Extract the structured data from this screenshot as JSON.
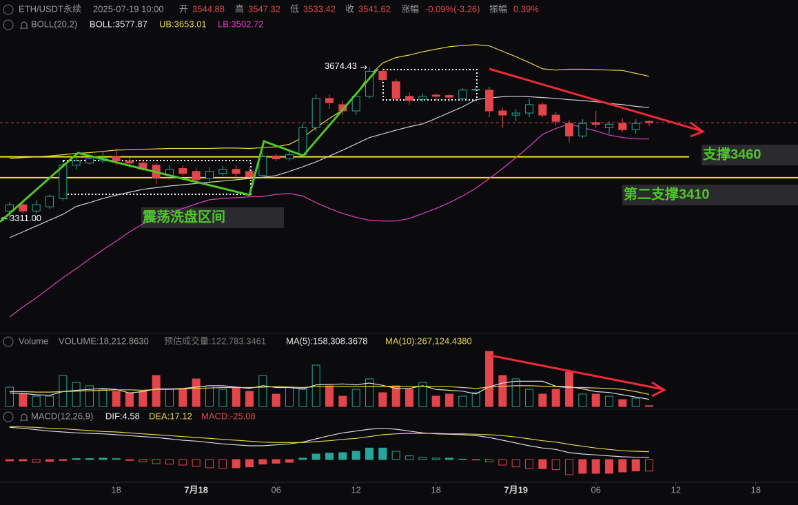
{
  "header": {
    "symbol": "ETH/USDT永续",
    "time": "2025-07-19 10:00",
    "items": [
      [
        "开",
        "3544.88"
      ],
      [
        "高",
        "3547.32"
      ],
      [
        "低",
        "3533.42"
      ],
      [
        "收",
        "3541.62"
      ],
      [
        "涨幅",
        "-0.09%(-3.26)"
      ],
      [
        "振幅",
        "0.39%"
      ]
    ],
    "boll": [
      "BOLL(20,2)",
      "BOLL:3577.87",
      "UB:3653.01",
      "LB:3502.72"
    ],
    "volume": [
      "Volume",
      "VOLUME:18,212.8630",
      "预估成交量:122,783.3461",
      "MA(5):158,308.3678",
      "MA(10):267,124.4380"
    ],
    "macd": [
      "MACD(12,26,9)",
      "DIF:4.58",
      "DEA:17.12",
      "MACD:-25.08"
    ]
  },
  "annotations": {
    "range": "震荡洗盘区间",
    "support1": "支撑3460",
    "support2": "第二支撑3410"
  },
  "chart_data": [
    {
      "type": "candlestick",
      "up_color": "#26a69a",
      "down_color": "#e2454b",
      "ylim": [
        3043,
        3836
      ],
      "xlim": [
        -0.724,
        59.17
      ],
      "xticks": [
        {
          "value": 8,
          "label": "18"
        },
        {
          "value": 14,
          "label": "7月18"
        },
        {
          "value": 20,
          "label": "06"
        },
        {
          "value": 26,
          "label": "12"
        },
        {
          "value": 32,
          "label": "18"
        },
        {
          "value": 38,
          "label": "7月19"
        },
        {
          "value": 44,
          "label": "06"
        },
        {
          "value": 50,
          "label": "12"
        },
        {
          "value": 56,
          "label": "18"
        }
      ],
      "open": [
        3330,
        3345,
        3330,
        3340,
        3360,
        3440,
        3445,
        3450,
        3460,
        3450,
        3445,
        3440,
        3415,
        3432,
        3425,
        3408,
        3420,
        3430,
        3425,
        3415,
        3462,
        3455,
        3465,
        3530,
        3600,
        3585,
        3570,
        3605,
        3665,
        3640,
        3605,
        3598,
        3608,
        3607,
        3600,
        3620,
        3620,
        3570,
        3560,
        3565,
        3585,
        3560,
        3540,
        3510,
        3542,
        3530,
        3540,
        3525,
        3544.88
      ],
      "high": [
        3352,
        3350,
        3355,
        3370,
        3450,
        3460,
        3465,
        3475,
        3480,
        3458,
        3450,
        3445,
        3440,
        3440,
        3432,
        3435,
        3438,
        3440,
        3435,
        3470,
        3468,
        3475,
        3540,
        3610,
        3610,
        3595,
        3612,
        3674.43,
        3672,
        3648,
        3615,
        3612,
        3612,
        3610,
        3625,
        3630,
        3628,
        3578,
        3575,
        3600,
        3590,
        3568,
        3548,
        3550,
        3570,
        3545,
        3552,
        3550,
        3547.32
      ],
      "low": [
        3311,
        3325,
        3325,
        3335,
        3355,
        3430,
        3440,
        3445,
        3440,
        3435,
        3425,
        3395,
        3405,
        3415,
        3395,
        3400,
        3415,
        3412,
        3408,
        3410,
        3450,
        3450,
        3460,
        3520,
        3575,
        3560,
        3560,
        3600,
        3640,
        3595,
        3585,
        3592,
        3595,
        3592,
        3595,
        3615,
        3555,
        3530,
        3545,
        3555,
        3555,
        3535,
        3495,
        3505,
        3530,
        3515,
        3520,
        3515,
        3533.42
      ],
      "close": [
        3345,
        3330,
        3345,
        3365,
        3440,
        3450,
        3455,
        3458,
        3450,
        3445,
        3430,
        3410,
        3430,
        3420,
        3405,
        3425,
        3430,
        3420,
        3412,
        3460,
        3455,
        3465,
        3530,
        3600,
        3590,
        3570,
        3605,
        3665,
        3645,
        3600,
        3595,
        3605,
        3605,
        3603,
        3620,
        3622,
        3570,
        3560,
        3565,
        3585,
        3560,
        3545,
        3510,
        3540,
        3538,
        3538,
        3525,
        3540,
        3541.62
      ],
      "series": [
        {
          "color": "#e8d44d",
          "values": [
            3456,
            3458,
            3460,
            3462,
            3465,
            3468,
            3470,
            3473,
            3476,
            3477,
            3478,
            3479,
            3480,
            3480,
            3480,
            3480,
            3481,
            3481,
            3480,
            3482,
            3484,
            3490,
            3506,
            3530,
            3552,
            3572,
            3610,
            3655,
            3685,
            3698,
            3704,
            3712,
            3718,
            3724,
            3727,
            3729,
            3726,
            3713,
            3700,
            3686,
            3671,
            3668,
            3670,
            3670,
            3669,
            3668,
            3667,
            3660,
            3653.01
          ]
        },
        {
          "color": "#cfcfcf",
          "values": [
            3266,
            3280,
            3294,
            3308,
            3322,
            3341,
            3350,
            3360,
            3368,
            3375,
            3382,
            3386,
            3390,
            3393,
            3396,
            3399,
            3402,
            3405,
            3408,
            3411,
            3415,
            3425,
            3436,
            3448,
            3462,
            3476,
            3491,
            3506,
            3515,
            3524,
            3532,
            3539,
            3552,
            3566,
            3580,
            3597,
            3601,
            3604,
            3605,
            3604,
            3602,
            3600,
            3597,
            3595,
            3592,
            3588,
            3585,
            3581,
            3577.87
          ]
        },
        {
          "color": "#e040c8",
          "values": [
            3076,
            3100,
            3122,
            3146,
            3170,
            3192,
            3215,
            3237,
            3258,
            3280,
            3299,
            3312,
            3325,
            3336,
            3347,
            3357,
            3360,
            3362,
            3364,
            3365,
            3370,
            3372,
            3366,
            3350,
            3336,
            3324,
            3315,
            3308,
            3306,
            3306,
            3312,
            3324,
            3336,
            3350,
            3366,
            3385,
            3408,
            3432,
            3458,
            3485,
            3514,
            3528,
            3539,
            3530,
            3522,
            3512,
            3506,
            3503,
            3502.72
          ]
        }
      ],
      "support_lines": [
        3460,
        3410
      ],
      "support_color": "#f2e41e",
      "extreme_labels": {
        "values": [
          3674.43,
          3311
        ],
        "value_labels": [
          "3674.43",
          "3311.00"
        ]
      }
    },
    {
      "type": "bar",
      "ylim": [
        0,
        1300000
      ],
      "values": [
        428000,
        275000,
        229000,
        229000,
        688000,
        535000,
        459000,
        382000,
        336000,
        306000,
        336000,
        688000,
        382000,
        382000,
        612000,
        459000,
        382000,
        428000,
        336000,
        688000,
        275000,
        428000,
        382000,
        918000,
        459000,
        229000,
        382000,
        612000,
        306000,
        459000,
        382000,
        535000,
        229000,
        275000,
        229000,
        306000,
        1224000,
        688000,
        612000,
        382000,
        275000,
        382000,
        765000,
        275000,
        275000,
        229000,
        153000,
        184000,
        18212.863
      ],
      "series": [
        {
          "color": "#dcdcdc",
          "values": [
            300000,
            290000,
            260000,
            250000,
            330000,
            360000,
            380000,
            400000,
            380000,
            300000,
            330000,
            390000,
            390000,
            400000,
            430000,
            460000,
            460000,
            430000,
            400000,
            460000,
            420000,
            420000,
            390000,
            480000,
            490000,
            500000,
            480000,
            520000,
            470000,
            400000,
            400000,
            460000,
            380000,
            360000,
            340000,
            280000,
            440000,
            520000,
            560000,
            560000,
            560000,
            450000,
            440000,
            390000,
            330000,
            310000,
            260000,
            210000,
            158308.3678
          ]
        },
        {
          "color": "#e8d44d",
          "values": [
            330000,
            330000,
            320000,
            320000,
            330000,
            340000,
            350000,
            360000,
            370000,
            370000,
            360000,
            380000,
            380000,
            390000,
            400000,
            410000,
            420000,
            420000,
            420000,
            430000,
            440000,
            430000,
            420000,
            440000,
            440000,
            440000,
            440000,
            450000,
            450000,
            450000,
            440000,
            450000,
            440000,
            440000,
            420000,
            400000,
            430000,
            450000,
            460000,
            460000,
            450000,
            440000,
            420000,
            420000,
            410000,
            400000,
            380000,
            330000,
            267124.438
          ]
        }
      ]
    },
    {
      "type": "macd",
      "ylim": [
        -49.5,
        82.5
      ],
      "up_color": "#26a69a",
      "down_color": "#e2454b",
      "values": [
        -3,
        -3,
        -6,
        -4,
        -2,
        2,
        2,
        3,
        2,
        -2,
        -5,
        -9,
        -10,
        -12,
        -15,
        -18,
        -19,
        -18,
        -16,
        -10,
        -8,
        -6,
        3,
        12,
        14,
        15,
        18,
        25,
        25,
        18,
        8,
        5,
        3,
        3,
        1,
        -1,
        -5,
        -12,
        -16,
        -20,
        -20,
        -22,
        -33,
        -30,
        -30,
        -30,
        -27,
        -25,
        -25.08
      ],
      "series": [
        {
          "color": "#dcdcdc",
          "values": [
            70,
            68,
            65,
            62,
            60,
            58,
            57,
            56,
            54,
            52,
            50,
            48,
            45,
            42,
            40,
            37,
            34,
            32,
            30,
            30,
            32,
            34,
            38,
            45,
            52,
            58,
            62,
            66,
            68,
            66,
            62,
            58,
            56,
            55,
            54,
            52,
            48,
            42,
            36,
            30,
            25,
            22,
            15,
            12,
            10,
            8,
            6,
            5,
            4.58
          ]
        },
        {
          "color": "#e8d44d",
          "values": [
            72,
            71,
            70,
            68,
            67,
            65,
            63,
            61,
            60,
            58,
            56,
            54,
            52,
            50,
            48,
            46,
            44,
            42,
            40,
            38,
            37,
            37,
            37,
            39,
            41,
            44,
            46,
            50,
            54,
            56,
            57,
            57,
            57,
            56,
            56,
            55,
            54,
            52,
            49,
            45,
            41,
            38,
            33,
            29,
            25,
            22,
            19,
            18,
            17.12
          ]
        }
      ]
    }
  ]
}
